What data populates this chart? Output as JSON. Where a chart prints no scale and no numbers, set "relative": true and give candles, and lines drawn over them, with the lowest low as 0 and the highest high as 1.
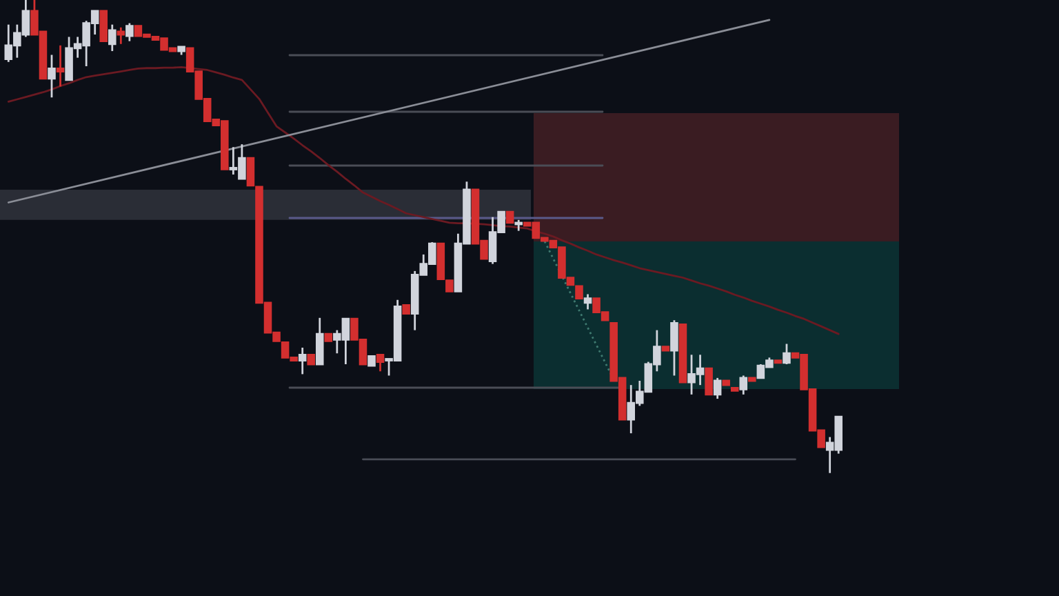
{
  "chart_data": {
    "type": "candlestick",
    "relative": true,
    "categories": [
      null,
      null,
      null,
      null,
      null,
      null,
      null,
      null,
      null,
      null,
      null,
      null,
      null,
      null,
      null,
      null,
      null,
      null,
      null,
      null,
      null,
      null,
      null,
      null,
      null,
      null,
      null,
      null,
      null,
      null,
      null,
      null,
      null,
      null,
      null,
      null,
      null,
      null,
      null,
      null,
      null,
      null,
      null,
      null,
      null,
      null,
      null,
      null,
      null,
      null,
      null,
      null,
      null,
      null,
      null,
      null,
      null,
      null,
      null,
      null,
      null,
      null,
      null,
      null,
      null,
      null,
      null,
      null,
      null,
      null,
      null,
      null,
      null,
      null,
      null,
      null,
      null,
      null,
      null,
      null,
      null,
      null,
      null,
      null,
      null,
      null,
      null,
      null,
      null,
      null,
      null,
      null,
      null,
      null,
      null,
      null,
      null
    ],
    "ohlc": [
      [
        0.875,
        0.948,
        0.869,
        0.904
      ],
      [
        0.904,
        0.948,
        0.878,
        0.93
      ],
      [
        0.927,
        1,
        0.922,
        0.977
      ],
      [
        0.977,
        1,
        0.927,
        0.927
      ],
      [
        0.933,
        0.933,
        0.834,
        0.834
      ],
      [
        0.834,
        0.884,
        0.794,
        0.855
      ],
      [
        0.855,
        0.904,
        0.817,
        0.849
      ],
      [
        0.831,
        0.922,
        0.831,
        0.898
      ],
      [
        0.898,
        0.922,
        0.878,
        0.907
      ],
      [
        0.904,
        0.956,
        0.86,
        0.951
      ],
      [
        0.951,
        0.977,
        0.927,
        0.977
      ],
      [
        0.977,
        0.977,
        0.913,
        0.913
      ],
      [
        0.907,
        0.948,
        0.892,
        0.936
      ],
      [
        0.933,
        0.942,
        0.907,
        0.927
      ],
      [
        0.924,
        0.951,
        0.913,
        0.945
      ],
      [
        0.945,
        0.945,
        0.924,
        0.924
      ],
      [
        0.927,
        0.927,
        0.922,
        0.922
      ],
      [
        0.922,
        0.922,
        0.916,
        0.916
      ],
      [
        0.919,
        0.919,
        0.895,
        0.895
      ],
      [
        0.898,
        0.898,
        0.892,
        0.892
      ],
      [
        0.892,
        0.901,
        0.884,
        0.901
      ],
      [
        0.898,
        0.898,
        0.849,
        0.849
      ],
      [
        0.849,
        0.849,
        0.791,
        0.791
      ],
      [
        0.791,
        0.791,
        0.744,
        0.744
      ],
      [
        0.747,
        0.747,
        0.735,
        0.735
      ],
      [
        0.744,
        0.744,
        0.642,
        0.642
      ],
      [
        0.642,
        0.689,
        0.631,
        0.645
      ],
      [
        0.622,
        0.695,
        0.622,
        0.666
      ],
      [
        0.666,
        0.666,
        0.608,
        0.608
      ],
      [
        0.605,
        0.605,
        0.36,
        0.36
      ],
      [
        0.36,
        0.36,
        0.297,
        0.297
      ],
      [
        0.297,
        0.297,
        0.279,
        0.279
      ],
      [
        0.276,
        0.276,
        0.244,
        0.244
      ],
      [
        0.244,
        0.244,
        0.238,
        0.238
      ],
      [
        0.238,
        0.265,
        0.209,
        0.25
      ],
      [
        0.25,
        0.25,
        0.23,
        0.23
      ],
      [
        0.23,
        0.328,
        0.23,
        0.294
      ],
      [
        0.294,
        0.294,
        0.279,
        0.279
      ],
      [
        0.282,
        0.302,
        0.253,
        0.294
      ],
      [
        0.282,
        0.326,
        0.23,
        0.326
      ],
      [
        0.326,
        0.326,
        0.282,
        0.282
      ],
      [
        0.282,
        0.282,
        0.23,
        0.23
      ],
      [
        0.227,
        0.247,
        0.227,
        0.247
      ],
      [
        0.25,
        0.25,
        0.215,
        0.235
      ],
      [
        0.238,
        0.241,
        0.206,
        0.241
      ],
      [
        0.238,
        0.366,
        0.238,
        0.352
      ],
      [
        0.355,
        0.355,
        0.337,
        0.337
      ],
      [
        0.337,
        0.427,
        0.302,
        0.419
      ],
      [
        0.419,
        0.462,
        0.419,
        0.442
      ],
      [
        0.442,
        0.488,
        0.442,
        0.485
      ],
      [
        0.485,
        0.485,
        0.41,
        0.41
      ],
      [
        0.407,
        0.407,
        0.384,
        0.384
      ],
      [
        0.384,
        0.506,
        0.384,
        0.485
      ],
      [
        0.485,
        0.616,
        0.485,
        0.599
      ],
      [
        0.599,
        0.599,
        0.485,
        0.485
      ],
      [
        0.491,
        0.491,
        0.453,
        0.453
      ],
      [
        0.448,
        0.541,
        0.442,
        0.509
      ],
      [
        0.509,
        0.552,
        0.509,
        0.552
      ],
      [
        0.552,
        0.552,
        0.529,
        0.529
      ],
      [
        0.526,
        0.535,
        0.512,
        0.529
      ],
      [
        0.529,
        0.529,
        0.523,
        0.523
      ],
      [
        0.529,
        0.529,
        0.497,
        0.497
      ],
      [
        0.497,
        0.497,
        0.491,
        0.491
      ],
      [
        0.491,
        0.491,
        0.477,
        0.477
      ],
      [
        0.477,
        0.477,
        0.413,
        0.413
      ],
      [
        0.413,
        0.413,
        0.398,
        0.398
      ],
      [
        0.395,
        0.395,
        0.369,
        0.369
      ],
      [
        0.36,
        0.378,
        0.346,
        0.369
      ],
      [
        0.369,
        0.369,
        0.34,
        0.34
      ],
      [
        0.34,
        0.34,
        0.323,
        0.323
      ],
      [
        0.317,
        0.317,
        0.195,
        0.195
      ],
      [
        0.201,
        0.201,
        0.113,
        0.113
      ],
      [
        0.113,
        0.186,
        0.084,
        0.148
      ],
      [
        0.148,
        0.195,
        0.142,
        0.172
      ],
      [
        0.172,
        0.235,
        0.172,
        0.23
      ],
      [
        0.23,
        0.302,
        0.215,
        0.267
      ],
      [
        0.267,
        0.267,
        0.259,
        0.259
      ],
      [
        0.259,
        0.323,
        0.206,
        0.317
      ],
      [
        0.314,
        0.314,
        0.192,
        0.192
      ],
      [
        0.192,
        0.25,
        0.166,
        0.209
      ],
      [
        0.209,
        0.25,
        0.186,
        0.221
      ],
      [
        0.221,
        0.221,
        0.166,
        0.166
      ],
      [
        0.166,
        0.201,
        0.157,
        0.195
      ],
      [
        0.195,
        0.195,
        0.186,
        0.186
      ],
      [
        0.18,
        0.18,
        0.174,
        0.174
      ],
      [
        0.177,
        0.206,
        0.166,
        0.201
      ],
      [
        0.201,
        0.201,
        0.195,
        0.195
      ],
      [
        0.201,
        0.23,
        0.201,
        0.227
      ],
      [
        0.224,
        0.244,
        0.224,
        0.238
      ],
      [
        0.238,
        0.238,
        0.233,
        0.233
      ],
      [
        0.233,
        0.273,
        0.23,
        0.253
      ],
      [
        0.253,
        0.253,
        0.244,
        0.244
      ],
      [
        0.25,
        0.25,
        0.177,
        0.177
      ],
      [
        0.177,
        0.177,
        0.09,
        0.09
      ],
      [
        0.09,
        0.09,
        0.055,
        0.055
      ],
      [
        0.049,
        0.076,
        0,
        0.064
      ],
      [
        0.049,
        0.119,
        0.041,
        0.119
      ]
    ],
    "colors": [
      "#d1d4dc",
      "#d1d4dc",
      "#d1d4dc",
      "#d32f2f",
      "#d32f2f",
      "#d1d4dc",
      "#d32f2f",
      "#d1d4dc",
      "#d1d4dc",
      "#d1d4dc",
      "#d1d4dc",
      "#d32f2f",
      "#d1d4dc",
      "#d32f2f",
      "#d1d4dc",
      "#d32f2f",
      "#d32f2f",
      "#d32f2f",
      "#d32f2f",
      "#d32f2f",
      "#d1d4dc",
      "#d32f2f",
      "#d32f2f",
      "#d32f2f",
      "#d32f2f",
      "#d32f2f",
      "#d1d4dc",
      "#d1d4dc",
      "#d32f2f",
      "#d32f2f",
      "#d32f2f",
      "#d32f2f",
      "#d32f2f",
      "#d32f2f",
      "#d1d4dc",
      "#d32f2f",
      "#d1d4dc",
      "#d32f2f",
      "#d1d4dc",
      "#d1d4dc",
      "#d32f2f",
      "#d32f2f",
      "#d1d4dc",
      "#d32f2f",
      "#d1d4dc",
      "#d1d4dc",
      "#d32f2f",
      "#d1d4dc",
      "#d1d4dc",
      "#d1d4dc",
      "#d32f2f",
      "#d32f2f",
      "#d1d4dc",
      "#d1d4dc",
      "#d32f2f",
      "#d32f2f",
      "#d1d4dc",
      "#d1d4dc",
      "#d32f2f",
      "#d1d4dc",
      "#d32f2f",
      "#d32f2f",
      "#d32f2f",
      "#d32f2f",
      "#d32f2f",
      "#d32f2f",
      "#d32f2f",
      "#d1d4dc",
      "#d32f2f",
      "#d32f2f",
      "#d32f2f",
      "#d32f2f",
      "#d1d4dc",
      "#d1d4dc",
      "#d1d4dc",
      "#d1d4dc",
      "#d32f2f",
      "#d1d4dc",
      "#d32f2f",
      "#d1d4dc",
      "#d1d4dc",
      "#d32f2f",
      "#d1d4dc",
      "#d32f2f",
      "#d32f2f",
      "#d1d4dc",
      "#d32f2f",
      "#d1d4dc",
      "#d1d4dc",
      "#d32f2f",
      "#d1d4dc",
      "#d32f2f",
      "#d32f2f",
      "#d32f2f",
      "#d32f2f",
      "#d1d4dc",
      "#d1d4dc"
    ],
    "series": [
      {
        "type": "line",
        "color": "#6b1a22",
        "line_style": "solid",
        "values": [
          0.785,
          0.79,
          0.795,
          0.8,
          0.805,
          0.811,
          0.818,
          0.824,
          0.831,
          0.837,
          0.84,
          0.843,
          0.846,
          0.849,
          0.852,
          0.855,
          0.856,
          0.856,
          0.857,
          0.857,
          0.858,
          0.856,
          0.854,
          0.852,
          0.847,
          0.842,
          0.836,
          0.831,
          0.811,
          0.791,
          0.762,
          0.733,
          0.72,
          0.707,
          0.693,
          0.68,
          0.666,
          0.651,
          0.637,
          0.622,
          0.608,
          0.593,
          0.584,
          0.575,
          0.567,
          0.558,
          0.549,
          0.545,
          0.541,
          0.537,
          0.533,
          0.529,
          0.528,
          0.528,
          0.527,
          0.526,
          0.524,
          0.522,
          0.521,
          0.519,
          0.517,
          0.511,
          0.506,
          0.5,
          0.492,
          0.485,
          0.477,
          0.47,
          0.462,
          0.456,
          0.45,
          0.445,
          0.439,
          0.433,
          0.429,
          0.425,
          0.421,
          0.417,
          0.413,
          0.407,
          0.401,
          0.396,
          0.39,
          0.384,
          0.377,
          0.371,
          0.364,
          0.358,
          0.352,
          0.345,
          0.339,
          0.332,
          0.326,
          0.318,
          0.31,
          0.302,
          0.294
        ]
      },
      {
        "type": "line",
        "color": "#8a8d96",
        "line_style": "solid",
        "values": [
          0.572,
          null,
          null,
          null,
          null,
          null,
          null,
          null,
          null,
          null,
          null,
          null,
          null,
          null,
          null,
          null,
          null,
          null,
          null,
          null,
          null,
          null,
          null,
          null,
          null,
          null,
          null,
          null,
          null,
          null,
          null,
          null,
          null,
          null,
          null,
          null,
          null,
          null,
          null,
          null,
          null,
          null,
          null,
          null,
          null,
          null,
          null,
          null,
          null,
          null,
          null,
          null,
          null,
          null,
          null,
          null,
          null,
          null,
          null,
          null,
          null,
          null,
          null,
          null,
          null,
          null,
          null,
          null,
          null,
          null,
          null,
          null,
          null,
          null,
          null,
          null,
          null,
          null,
          null,
          null,
          null,
          null,
          null,
          null,
          null,
          null,
          null,
          null,
          0.958,
          null,
          null,
          null,
          null,
          null,
          null,
          null,
          null
        ]
      },
      {
        "type": "line",
        "color": "#4a4d56",
        "line_style": "solid",
        "values": [
          null,
          null,
          null,
          null,
          null,
          null,
          null,
          null,
          null,
          null,
          null,
          null,
          null,
          null,
          null,
          null,
          null,
          null,
          null,
          null,
          null,
          null,
          null,
          null,
          null,
          null,
          null,
          null,
          null,
          null,
          null,
          null,
          null,
          null,
          null,
          null,
          null,
          null,
          null,
          null,
          null,
          0.029,
          null,
          null,
          null,
          null,
          null,
          null,
          null,
          null,
          null,
          null,
          null,
          null,
          null,
          null,
          null,
          null,
          null,
          null,
          null,
          null,
          null,
          null,
          null,
          null,
          null,
          null,
          null,
          null,
          null,
          null,
          null,
          null,
          null,
          null,
          null,
          null,
          null,
          null,
          null,
          null,
          null,
          null,
          null,
          null,
          null,
          null,
          null,
          null,
          null,
          0.029,
          null,
          null,
          null,
          null,
          null
        ]
      }
    ],
    "bands": [
      {
        "axis": "y",
        "from": 0.535,
        "to": 0.599,
        "color": "#2a2d36"
      }
    ]
  }
}
